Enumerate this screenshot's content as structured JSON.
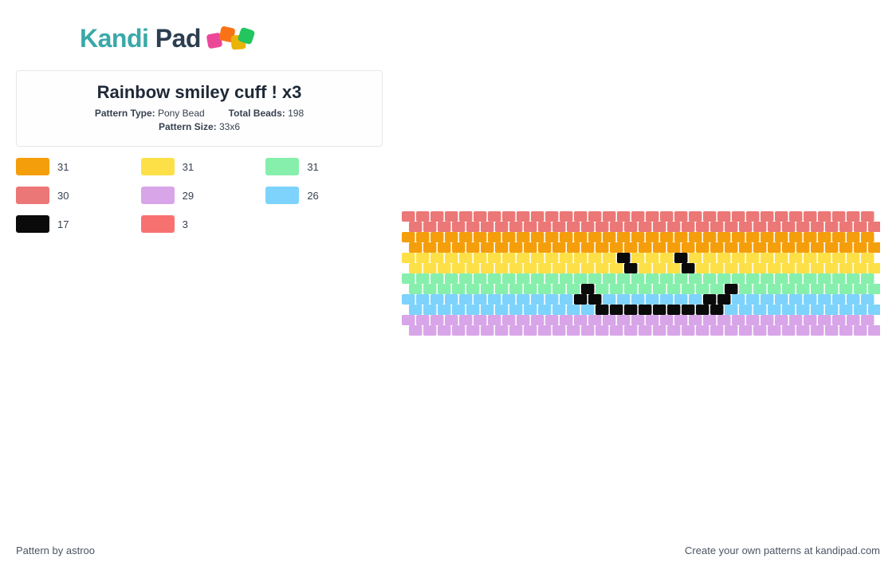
{
  "logo": {
    "text_part1": "Kandi",
    "text_part2": " Pad",
    "bead_colors": [
      "#ec4899",
      "#f97316",
      "#eab308",
      "#22c55e"
    ]
  },
  "pattern": {
    "title": "Rainbow smiley cuff ! x3",
    "type_label": "Pattern Type:",
    "type_value": " Pony Bead",
    "beads_label": "Total Beads:",
    "beads_value": " 198",
    "size_label": "Pattern Size:",
    "size_value": " 33x6"
  },
  "colors": [
    {
      "hex": "#f59e0b",
      "count": "31"
    },
    {
      "hex": "#fde047",
      "count": "31"
    },
    {
      "hex": "#86efac",
      "count": "31"
    },
    {
      "hex": "#ec7777",
      "count": "30"
    },
    {
      "hex": "#d8a5e8",
      "count": "29"
    },
    {
      "hex": "#7dd3fc",
      "count": "26"
    },
    {
      "hex": "#0a0a0a",
      "count": "17"
    },
    {
      "hex": "#f87171",
      "count": "3"
    }
  ],
  "bead_grid": {
    "cols": 33,
    "rows": 12,
    "bead_w": 18,
    "bead_h": 14,
    "row_stagger": 9,
    "row_colors": [
      "#ec7777",
      "#ec7777",
      "#f59e0b",
      "#f59e0b",
      "#fde047",
      "#fde047",
      "#86efac",
      "#86efac",
      "#7dd3fc",
      "#7dd3fc",
      "#d8a5e8",
      "#d8a5e8"
    ],
    "black": "#0a0a0a",
    "black_cells": [
      [
        4,
        15
      ],
      [
        5,
        15
      ],
      [
        4,
        19
      ],
      [
        5,
        19
      ],
      [
        7,
        12
      ],
      [
        8,
        12
      ],
      [
        8,
        13
      ],
      [
        9,
        13
      ],
      [
        9,
        14
      ],
      [
        9,
        15
      ],
      [
        9,
        16
      ],
      [
        9,
        17
      ],
      [
        9,
        18
      ],
      [
        9,
        19
      ],
      [
        9,
        20
      ],
      [
        9,
        21
      ],
      [
        8,
        21
      ],
      [
        8,
        22
      ],
      [
        7,
        22
      ]
    ]
  },
  "footer": {
    "left": "Pattern by astroo",
    "right": "Create your own patterns at kandipad.com"
  }
}
